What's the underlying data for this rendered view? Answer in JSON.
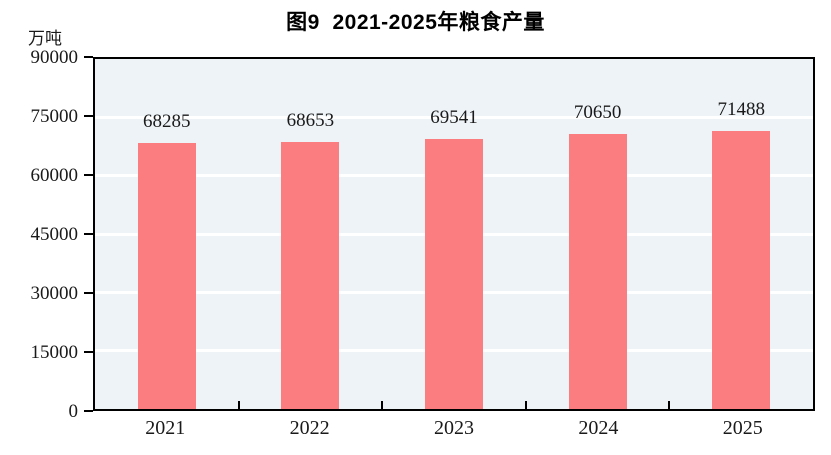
{
  "title": "图9  2021-2025年粮食产量",
  "unit_label": "万吨",
  "colors": {
    "bar": "#fc7d7f",
    "plot_bg": "#edf3f7",
    "gridline": "#ffffff",
    "axis": "#000000",
    "text": "#1a1a1a"
  },
  "chart_data": {
    "type": "bar",
    "title": "图9  2021-2025年粮食产量",
    "categories": [
      "2021",
      "2022",
      "2023",
      "2024",
      "2025"
    ],
    "values": [
      68285,
      68653,
      69541,
      70650,
      71488
    ],
    "data_labels": [
      68285,
      68653,
      69541,
      70650,
      71488
    ],
    "xlabel": "",
    "ylabel": "万吨",
    "ylim": [
      0,
      90000
    ],
    "yticks": [
      0,
      15000,
      30000,
      45000,
      60000,
      75000,
      90000
    ],
    "grid": true,
    "legend_position": "none",
    "data_labels_shown": true
  }
}
